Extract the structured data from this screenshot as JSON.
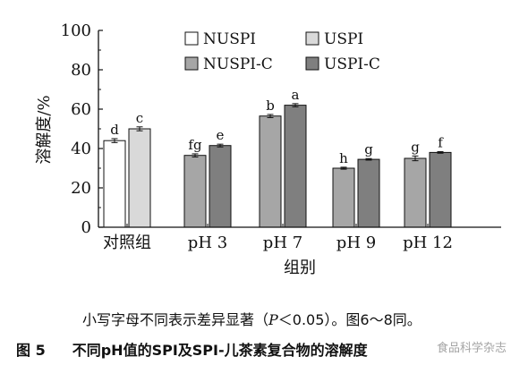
{
  "chart_data": {
    "type": "bar",
    "categories": [
      "对照组",
      "pH 3",
      "pH 7",
      "pH 9",
      "pH 12"
    ],
    "series": [
      {
        "name": "NUSPI",
        "color": "#ffffff",
        "values": [
          44.0,
          null,
          null,
          null,
          null
        ],
        "errors": [
          1.0,
          null,
          null,
          null,
          null
        ],
        "labels": [
          "d",
          null,
          null,
          null,
          null
        ]
      },
      {
        "name": "USPI",
        "color": "#d9d9d9",
        "values": [
          50.0,
          null,
          null,
          null,
          null
        ],
        "errors": [
          1.0,
          null,
          null,
          null,
          null
        ],
        "labels": [
          "c",
          null,
          null,
          null,
          null
        ]
      },
      {
        "name": "NUSPI-C",
        "color": "#a6a6a6",
        "values": [
          null,
          36.5,
          56.5,
          30.0,
          35.0
        ],
        "errors": [
          null,
          0.8,
          0.8,
          0.5,
          1.2
        ],
        "labels": [
          null,
          "fg",
          "b",
          "h",
          "g"
        ]
      },
      {
        "name": "USPI-C",
        "color": "#7f7f7f",
        "values": [
          null,
          41.5,
          62.0,
          34.5,
          38.0
        ],
        "errors": [
          null,
          0.7,
          0.8,
          0.4,
          0.4
        ],
        "labels": [
          null,
          "e",
          "a",
          "g",
          "f"
        ]
      }
    ],
    "xlabel": "组别",
    "ylabel": "溶解度/%",
    "ylim": [
      0,
      100
    ],
    "yticks": [
      0,
      20,
      40,
      60,
      80,
      100
    ],
    "grid": false,
    "legend_position": "top"
  },
  "note": {
    "prefix": "小写字母不同表示差异显著（",
    "p_symbol": "P",
    "suffix": "＜0.05）。图6～8同。"
  },
  "caption": {
    "number": "图 5",
    "title": "不同pH值的SPI及SPI-儿茶素复合物的溶解度"
  },
  "watermark": {
    "text": "食品科学杂志"
  }
}
